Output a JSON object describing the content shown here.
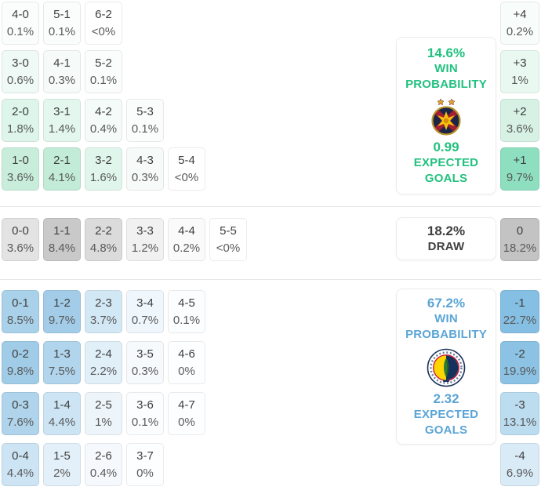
{
  "colors": {
    "home_accent": "#22c17f",
    "away_accent": "#5ba5d6",
    "draw_text": "#3f3f3f",
    "divider": "#e6e6e6"
  },
  "icons": {
    "home_badge": "fcsb-crest-icon",
    "away_badge": "fenerbahce-crest-icon"
  },
  "home": {
    "panel": {
      "win_pct": "14.6%",
      "win_l1": "WIN",
      "win_l2": "PROBABILITY",
      "xg": "0.99",
      "xg_l1": "EXPECTED",
      "xg_l2": "GOALS"
    },
    "rows": [
      [
        {
          "s": "4-0",
          "p": "0.1%",
          "bg": "#fbfdfc"
        },
        {
          "s": "5-1",
          "p": "0.1%",
          "bg": "#fbfdfc"
        },
        {
          "s": "6-2",
          "p": "<0%",
          "bg": "#ffffff"
        }
      ],
      [
        {
          "s": "3-0",
          "p": "0.6%",
          "bg": "#eff9f5"
        },
        {
          "s": "4-1",
          "p": "0.3%",
          "bg": "#f6fbf9"
        },
        {
          "s": "5-2",
          "p": "0.1%",
          "bg": "#fbfdfc"
        }
      ],
      [
        {
          "s": "2-0",
          "p": "1.8%",
          "bg": "#ddf5ea"
        },
        {
          "s": "3-1",
          "p": "1.4%",
          "bg": "#e3f7ee"
        },
        {
          "s": "4-2",
          "p": "0.4%",
          "bg": "#f4fbf8"
        },
        {
          "s": "5-3",
          "p": "0.1%",
          "bg": "#fbfdfc"
        }
      ],
      [
        {
          "s": "1-0",
          "p": "3.6%",
          "bg": "#c8eedb"
        },
        {
          "s": "2-1",
          "p": "4.1%",
          "bg": "#c2ecd7"
        },
        {
          "s": "3-2",
          "p": "1.6%",
          "bg": "#e0f6ec"
        },
        {
          "s": "4-3",
          "p": "0.3%",
          "bg": "#f6fbf9"
        },
        {
          "s": "5-4",
          "p": "<0%",
          "bg": "#ffffff"
        }
      ]
    ],
    "agg": [
      {
        "s": "+4",
        "p": "0.2%",
        "bg": "#f8fcfa"
      },
      {
        "s": "+3",
        "p": "1%",
        "bg": "#eaf8f2"
      },
      {
        "s": "+2",
        "p": "3.6%",
        "bg": "#d7f2e5"
      },
      {
        "s": "+1",
        "p": "9.7%",
        "bg": "#8edfc0"
      }
    ]
  },
  "draw": {
    "panel": {
      "pct": "18.2%",
      "label": "DRAW"
    },
    "rows": [
      [
        {
          "s": "0-0",
          "p": "3.6%",
          "bg": "#e3e3e3"
        },
        {
          "s": "1-1",
          "p": "8.4%",
          "bg": "#c9c9c9"
        },
        {
          "s": "2-2",
          "p": "4.8%",
          "bg": "#dbdbdb"
        },
        {
          "s": "3-3",
          "p": "1.2%",
          "bg": "#f1f1f1"
        },
        {
          "s": "4-4",
          "p": "0.2%",
          "bg": "#fafafa"
        },
        {
          "s": "5-5",
          "p": "<0%",
          "bg": "#ffffff"
        }
      ]
    ],
    "agg": [
      {
        "s": "0",
        "p": "18.2%",
        "bg": "#c3c3c3"
      }
    ]
  },
  "away": {
    "panel": {
      "win_pct": "67.2%",
      "win_l1": "WIN",
      "win_l2": "PROBABILITY",
      "xg": "2.32",
      "xg_l1": "EXPECTED",
      "xg_l2": "GOALS"
    },
    "rows": [
      [
        {
          "s": "0-1",
          "p": "8.5%",
          "bg": "#a9d1ea"
        },
        {
          "s": "1-2",
          "p": "9.7%",
          "bg": "#a2cce8"
        },
        {
          "s": "2-3",
          "p": "3.7%",
          "bg": "#d3e8f5"
        },
        {
          "s": "3-4",
          "p": "0.7%",
          "bg": "#f0f7fc"
        },
        {
          "s": "4-5",
          "p": "0.1%",
          "bg": "#fbfdfe"
        }
      ],
      [
        {
          "s": "0-2",
          "p": "9.8%",
          "bg": "#a1cce8"
        },
        {
          "s": "1-3",
          "p": "7.5%",
          "bg": "#b0d5ec"
        },
        {
          "s": "2-4",
          "p": "2.2%",
          "bg": "#e1eff9"
        },
        {
          "s": "3-5",
          "p": "0.3%",
          "bg": "#f7fafd"
        },
        {
          "s": "4-6",
          "p": "0%",
          "bg": "#fdfeff"
        }
      ],
      [
        {
          "s": "0-3",
          "p": "7.6%",
          "bg": "#afd4eb"
        },
        {
          "s": "1-4",
          "p": "4.4%",
          "bg": "#cce4f4"
        },
        {
          "s": "2-5",
          "p": "1%",
          "bg": "#edf5fb"
        },
        {
          "s": "3-6",
          "p": "0.1%",
          "bg": "#fbfdfe"
        },
        {
          "s": "4-7",
          "p": "0%",
          "bg": "#fdfeff"
        }
      ],
      [
        {
          "s": "0-4",
          "p": "4.4%",
          "bg": "#cce4f4"
        },
        {
          "s": "1-5",
          "p": "2%",
          "bg": "#e3f0f9"
        },
        {
          "s": "2-6",
          "p": "0.4%",
          "bg": "#f5f9fd"
        },
        {
          "s": "3-7",
          "p": "0%",
          "bg": "#fdfeff"
        }
      ]
    ],
    "agg": [
      {
        "s": "-1",
        "p": "22.7%",
        "bg": "#85bfe3"
      },
      {
        "s": "-2",
        "p": "19.9%",
        "bg": "#8cc3e5"
      },
      {
        "s": "-3",
        "p": "13.1%",
        "bg": "#bcdcf0"
      },
      {
        "s": "-4",
        "p": "6.9%",
        "bg": "#d9ebf7"
      }
    ]
  }
}
